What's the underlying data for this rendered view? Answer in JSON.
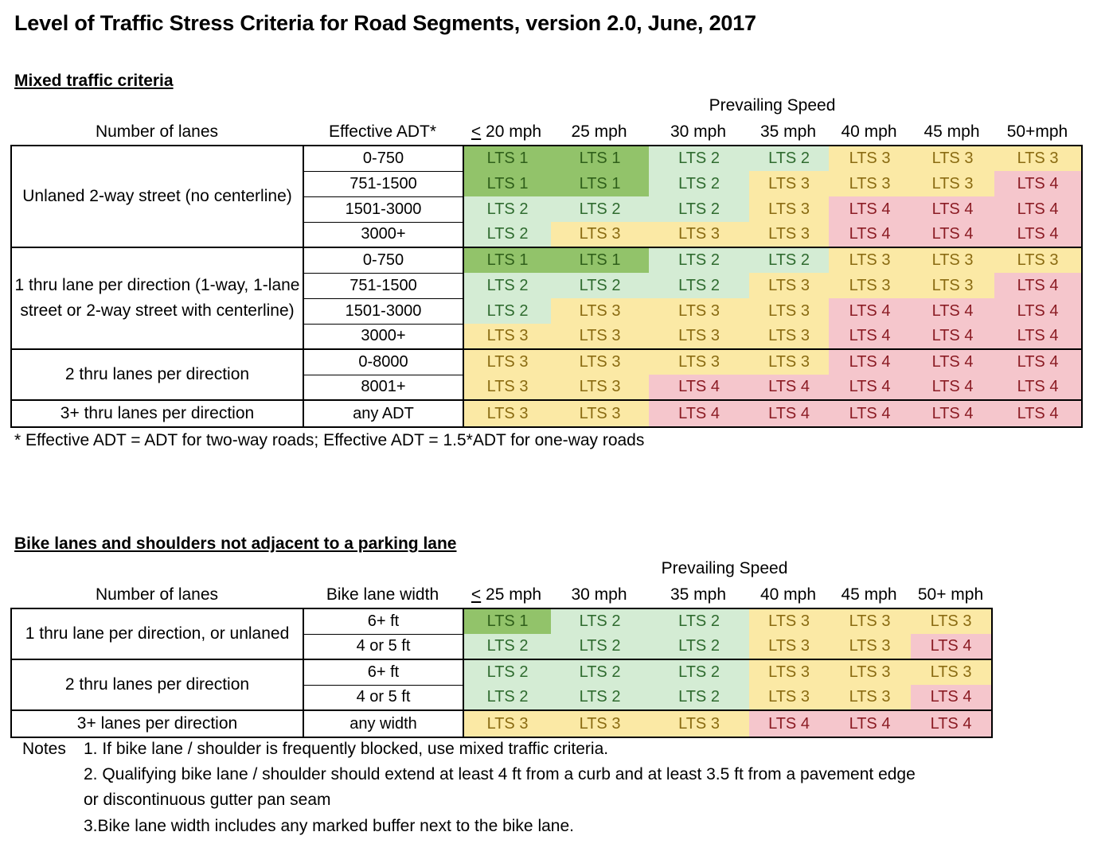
{
  "title": "Level of Traffic Stress Criteria for Road Segments, version 2.0, June, 2017",
  "mixed": {
    "section_title": "Mixed traffic criteria",
    "speed_caption": "Prevailing Speed",
    "header_lanes": "Number of lanes",
    "header_adt": "Effective ADT*",
    "first_speed_prefix": "<",
    "first_speed_rest": " 20 mph",
    "speeds": [
      "25 mph",
      "30 mph",
      "35 mph",
      "40 mph",
      "45 mph",
      "50+mph"
    ],
    "groups": [
      {
        "label": "Unlaned 2-way street (no centerline)",
        "rows": [
          {
            "adt": "0-750",
            "lts": [
              1,
              1,
              2,
              2,
              3,
              3,
              3
            ]
          },
          {
            "adt": "751-1500",
            "lts": [
              1,
              1,
              2,
              3,
              3,
              3,
              4
            ]
          },
          {
            "adt": "1501-3000",
            "lts": [
              2,
              2,
              2,
              3,
              4,
              4,
              4
            ]
          },
          {
            "adt": "3000+",
            "lts": [
              2,
              3,
              3,
              3,
              4,
              4,
              4
            ]
          }
        ]
      },
      {
        "label": "1 thru lane per direction (1-way, 1-lane street or 2-way street with centerline)",
        "rows": [
          {
            "adt": "0-750",
            "lts": [
              1,
              1,
              2,
              2,
              3,
              3,
              3
            ]
          },
          {
            "adt": "751-1500",
            "lts": [
              2,
              2,
              2,
              3,
              3,
              3,
              4
            ]
          },
          {
            "adt": "1501-3000",
            "lts": [
              2,
              3,
              3,
              3,
              4,
              4,
              4
            ]
          },
          {
            "adt": "3000+",
            "lts": [
              3,
              3,
              3,
              3,
              4,
              4,
              4
            ]
          }
        ]
      },
      {
        "label": "2 thru lanes per direction",
        "rows": [
          {
            "adt": "0-8000",
            "lts": [
              3,
              3,
              3,
              3,
              4,
              4,
              4
            ]
          },
          {
            "adt": "8001+",
            "lts": [
              3,
              3,
              4,
              4,
              4,
              4,
              4
            ]
          }
        ]
      },
      {
        "label": "3+ thru lanes per direction",
        "rows": [
          {
            "adt": "any ADT",
            "lts": [
              3,
              3,
              4,
              4,
              4,
              4,
              4
            ]
          }
        ]
      }
    ],
    "footnote": "* Effective ADT = ADT for two-way roads; Effective ADT = 1.5*ADT  for one-way roads"
  },
  "bike": {
    "section_title": "Bike lanes  and shoulders not adjacent to a parking lane",
    "speed_caption": "Prevailing Speed",
    "header_lanes": "Number of lanes",
    "header_width": "Bike lane width",
    "first_speed_prefix": "<",
    "first_speed_rest": " 25 mph",
    "speeds": [
      "30 mph",
      "35 mph",
      "40 mph",
      "45 mph",
      "50+ mph"
    ],
    "groups": [
      {
        "label": "1 thru lane per direction, or unlaned",
        "rows": [
          {
            "width": "6+ ft",
            "lts": [
              1,
              2,
              2,
              3,
              3,
              3
            ]
          },
          {
            "width": "4 or 5 ft",
            "lts": [
              2,
              2,
              2,
              3,
              3,
              4
            ]
          }
        ]
      },
      {
        "label": "2 thru lanes per direction",
        "rows": [
          {
            "width": "6+ ft",
            "lts": [
              2,
              2,
              2,
              3,
              3,
              3
            ]
          },
          {
            "width": "4 or 5 ft",
            "lts": [
              2,
              2,
              2,
              3,
              3,
              4
            ]
          }
        ]
      },
      {
        "label": "3+ lanes per direction",
        "rows": [
          {
            "width": "any width",
            "lts": [
              3,
              3,
              3,
              4,
              4,
              4
            ]
          }
        ]
      }
    ],
    "notes_label": "Notes",
    "notes": [
      "1. If bike lane / shoulder is frequently blocked, use mixed traffic criteria.",
      "2. Qualifying bike lane / shoulder should extend at least 4 ft from a curb and at least 3.5 ft from a pavement edge",
      "or discontinuous gutter pan seam",
      "3.Bike lane width includes any marked buffer next to the bike lane."
    ]
  },
  "lts_prefix": "LTS",
  "colors": {
    "lts1": "#92c36a",
    "lts2": "#d4ecd4",
    "lts3": "#fbe9a5",
    "lts4": "#f5c6cc"
  }
}
